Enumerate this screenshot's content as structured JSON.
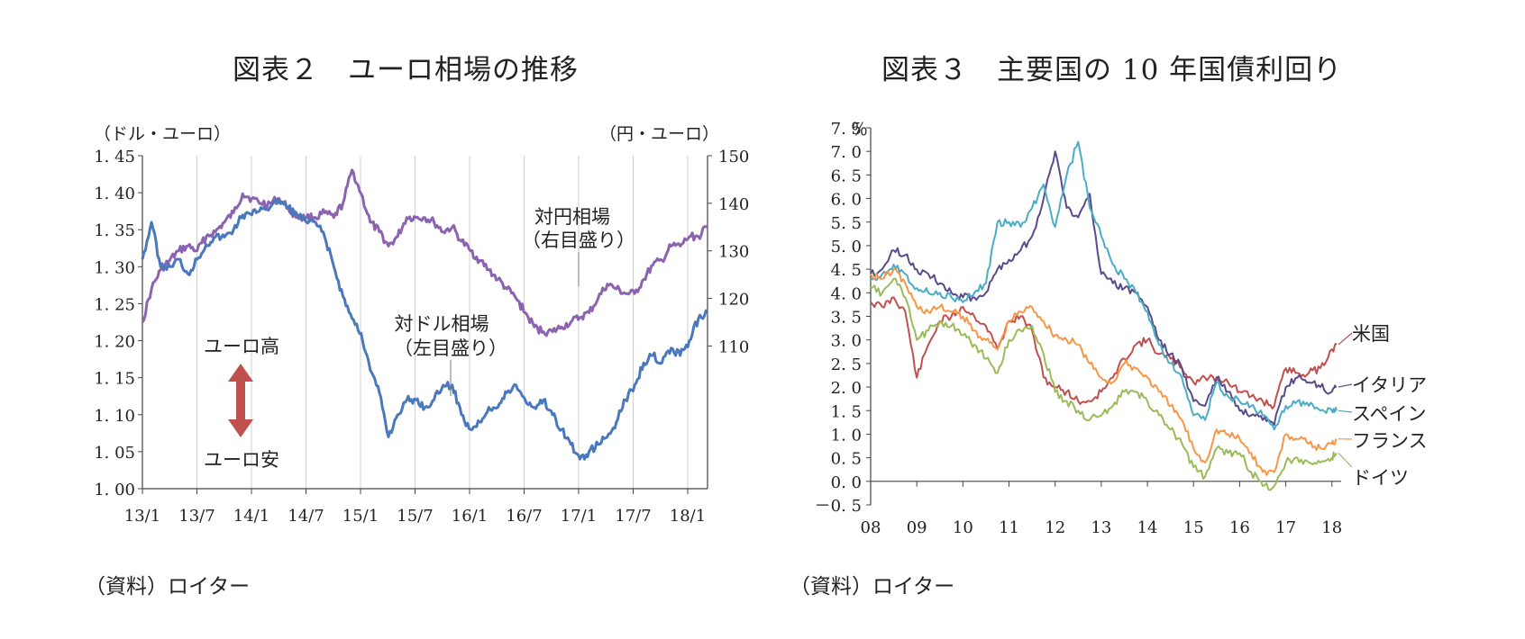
{
  "figure2": {
    "title": "図表２　ユーロ相場の推移",
    "source": "（資料）ロイター",
    "chart_data": {
      "type": "line",
      "title": "図表２　ユーロ相場の推移",
      "left_axis_unit": "（ドル・ユーロ）",
      "right_axis_unit": "（円・ユーロ）",
      "x_ticks": [
        "13/1",
        "13/7",
        "14/1",
        "14/7",
        "15/1",
        "15/7",
        "16/1",
        "16/7",
        "17/1",
        "17/7",
        "18/1"
      ],
      "y_left_ticks": [
        "1. 45",
        "1. 40",
        "1. 35",
        "1. 30",
        "1. 25",
        "1. 20",
        "1. 15",
        "1. 10",
        "1. 05",
        "1. 00"
      ],
      "y_right_ticks": [
        "150",
        "140",
        "130",
        "120",
        "110"
      ],
      "ylim_left": [
        1.0,
        1.45
      ],
      "ylim_right": [
        80,
        150
      ],
      "xlim": [
        0,
        62
      ],
      "grid": "vertical",
      "series": [
        {
          "name": "対ドル相場",
          "label_lines": [
            "対ドル相場",
            "（左目盛り）"
          ],
          "axis": "left",
          "color": "#4a78bd",
          "x": [
            0,
            1,
            2,
            3,
            4,
            5,
            6,
            7,
            8,
            9,
            10,
            11,
            12,
            13,
            14,
            15,
            16,
            17,
            18,
            19,
            20,
            21,
            22,
            23,
            24,
            25,
            26,
            27,
            28,
            29,
            30,
            31,
            32,
            33,
            34,
            35,
            36,
            37,
            38,
            39,
            40,
            41,
            42,
            43,
            44,
            45,
            46,
            47,
            48,
            49,
            50,
            51,
            52,
            53,
            54,
            55,
            56,
            57,
            58,
            59,
            60,
            61,
            62
          ],
          "y": [
            1.31,
            1.36,
            1.3,
            1.3,
            1.31,
            1.29,
            1.31,
            1.33,
            1.34,
            1.34,
            1.35,
            1.37,
            1.37,
            1.38,
            1.38,
            1.39,
            1.38,
            1.37,
            1.36,
            1.36,
            1.34,
            1.3,
            1.26,
            1.23,
            1.21,
            1.16,
            1.13,
            1.07,
            1.1,
            1.12,
            1.12,
            1.11,
            1.12,
            1.14,
            1.14,
            1.1,
            1.08,
            1.09,
            1.11,
            1.11,
            1.13,
            1.14,
            1.12,
            1.11,
            1.12,
            1.1,
            1.08,
            1.06,
            1.04,
            1.05,
            1.06,
            1.07,
            1.09,
            1.12,
            1.14,
            1.17,
            1.18,
            1.17,
            1.19,
            1.18,
            1.2,
            1.23,
            1.24
          ]
        },
        {
          "name": "対円相場",
          "label_lines": [
            "対円相場",
            "（右目盛り）"
          ],
          "axis": "right",
          "color": "#8c63b0",
          "x": [
            0,
            1,
            2,
            3,
            4,
            5,
            6,
            7,
            8,
            9,
            10,
            11,
            12,
            13,
            14,
            15,
            16,
            17,
            18,
            19,
            20,
            21,
            22,
            23,
            24,
            25,
            26,
            27,
            28,
            29,
            30,
            31,
            32,
            33,
            34,
            35,
            36,
            37,
            38,
            39,
            40,
            41,
            42,
            43,
            44,
            45,
            46,
            47,
            48,
            49,
            50,
            51,
            52,
            53,
            54,
            55,
            56,
            57,
            58,
            59,
            60,
            61,
            62
          ],
          "y": [
            115,
            122,
            126,
            128,
            130,
            131,
            130,
            133,
            134,
            136,
            138,
            142,
            141,
            140,
            140,
            141,
            139,
            137,
            137,
            137,
            138,
            137,
            140,
            147,
            142,
            136,
            134,
            131,
            133,
            137,
            137,
            137,
            136,
            134,
            135,
            132,
            130,
            128,
            126,
            124,
            122,
            120,
            117,
            114,
            113,
            113,
            114,
            115,
            116,
            117,
            120,
            123,
            122,
            121,
            121,
            124,
            127,
            128,
            131,
            131,
            133,
            133,
            135
          ]
        }
      ],
      "annotations": [
        {
          "text": "ユーロ高",
          "arrow": "up",
          "color": "#c0504d"
        },
        {
          "text": "ユーロ安",
          "arrow": "down",
          "color": "#c0504d"
        }
      ]
    }
  },
  "figure3": {
    "title": "図表３　主要国の 10 年国債利回り",
    "source": "（資料）ロイター",
    "chart_data": {
      "type": "line",
      "title": "図表３　主要国の 10 年国債利回り",
      "y_unit": "％",
      "x_ticks": [
        "08",
        "09",
        "10",
        "11",
        "12",
        "13",
        "14",
        "15",
        "16",
        "17",
        "18"
      ],
      "y_ticks": [
        "7. 5",
        "7. 0",
        "6. 5",
        "6. 0",
        "5. 5",
        "5. 0",
        "4. 5",
        "4. 0",
        "3. 5",
        "3. 0",
        "2. 5",
        "2. 0",
        "1. 5",
        "1. 0",
        "0. 5",
        "0. 0",
        "－0. 5"
      ],
      "ylim": [
        -0.5,
        7.5
      ],
      "xlim": [
        0,
        10.2
      ],
      "grid": "none",
      "series": [
        {
          "name": "米国",
          "color": "#c0504d",
          "x": [
            0,
            0.25,
            0.5,
            0.75,
            1,
            1.25,
            1.5,
            1.75,
            2,
            2.25,
            2.5,
            2.75,
            3,
            3.25,
            3.5,
            3.75,
            4,
            4.25,
            4.5,
            4.75,
            5,
            5.25,
            5.5,
            5.75,
            6,
            6.25,
            6.5,
            6.75,
            7,
            7.25,
            7.5,
            7.75,
            8,
            8.25,
            8.5,
            8.75,
            9,
            9.25,
            9.5,
            9.75,
            10,
            10.1
          ],
          "y": [
            3.8,
            3.7,
            3.9,
            3.6,
            2.2,
            2.9,
            3.4,
            3.5,
            3.7,
            3.5,
            3.3,
            2.8,
            3.4,
            3.5,
            3.2,
            2.2,
            2.0,
            1.9,
            1.7,
            1.7,
            1.9,
            2.2,
            2.6,
            2.9,
            3.0,
            2.7,
            2.6,
            2.4,
            2.1,
            2.2,
            2.2,
            2.1,
            1.9,
            1.8,
            1.7,
            1.6,
            2.4,
            2.3,
            2.3,
            2.4,
            2.8,
            2.9
          ]
        },
        {
          "name": "イタリア",
          "color": "#5b4a8a",
          "x": [
            0,
            0.25,
            0.5,
            0.75,
            1,
            1.25,
            1.5,
            1.75,
            2,
            2.25,
            2.5,
            2.75,
            3,
            3.25,
            3.5,
            3.75,
            4,
            4.25,
            4.5,
            4.75,
            5,
            5.25,
            5.5,
            5.75,
            6,
            6.25,
            6.5,
            6.75,
            7,
            7.25,
            7.5,
            7.75,
            8,
            8.25,
            8.5,
            8.75,
            9,
            9.25,
            9.5,
            9.75,
            10,
            10.1
          ],
          "y": [
            4.4,
            4.5,
            4.9,
            4.8,
            4.5,
            4.4,
            4.2,
            4.0,
            3.9,
            3.9,
            4.0,
            4.5,
            4.7,
            4.9,
            5.2,
            6.0,
            7.0,
            5.8,
            5.6,
            6.1,
            4.4,
            4.2,
            4.1,
            4.0,
            3.7,
            3.0,
            2.7,
            2.4,
            1.7,
            1.6,
            2.2,
            1.9,
            1.5,
            1.4,
            1.3,
            1.2,
            2.0,
            2.2,
            2.1,
            2.0,
            1.9,
            2.0
          ]
        },
        {
          "name": "スペイン",
          "color": "#4bacc6",
          "x": [
            0,
            0.25,
            0.5,
            0.75,
            1,
            1.25,
            1.5,
            1.75,
            2,
            2.25,
            2.5,
            2.75,
            3,
            3.25,
            3.5,
            3.75,
            4,
            4.25,
            4.5,
            4.75,
            5,
            5.25,
            5.5,
            5.75,
            6,
            6.25,
            6.5,
            6.75,
            7,
            7.25,
            7.5,
            7.75,
            8,
            8.25,
            8.5,
            8.75,
            9,
            9.25,
            9.5,
            9.75,
            10,
            10.1
          ],
          "y": [
            4.3,
            4.4,
            4.6,
            4.4,
            4.1,
            4.0,
            4.0,
            3.9,
            3.8,
            4.0,
            4.2,
            5.5,
            5.5,
            5.4,
            5.8,
            6.3,
            5.4,
            6.5,
            7.2,
            5.8,
            5.2,
            4.6,
            4.3,
            4.0,
            3.6,
            2.9,
            2.5,
            2.2,
            1.4,
            1.3,
            2.1,
            1.8,
            1.7,
            1.6,
            1.4,
            1.1,
            1.6,
            1.7,
            1.6,
            1.5,
            1.5,
            1.5
          ]
        },
        {
          "name": "フランス",
          "color": "#f79646",
          "x": [
            0,
            0.25,
            0.5,
            0.75,
            1,
            1.25,
            1.5,
            1.75,
            2,
            2.25,
            2.5,
            2.75,
            3,
            3.25,
            3.5,
            3.75,
            4,
            4.25,
            4.5,
            4.75,
            5,
            5.25,
            5.5,
            5.75,
            6,
            6.25,
            6.5,
            6.75,
            7,
            7.25,
            7.5,
            7.75,
            8,
            8.25,
            8.5,
            8.75,
            9,
            9.25,
            9.5,
            9.75,
            10,
            10.1
          ],
          "y": [
            4.4,
            4.3,
            4.5,
            4.2,
            3.7,
            3.6,
            3.7,
            3.6,
            3.5,
            3.2,
            3.0,
            2.8,
            3.4,
            3.6,
            3.7,
            3.4,
            3.1,
            3.0,
            2.9,
            2.5,
            2.2,
            2.1,
            2.5,
            2.4,
            2.2,
            1.9,
            1.6,
            1.3,
            0.7,
            0.4,
            1.1,
            1.0,
            0.9,
            0.6,
            0.2,
            0.2,
            1.0,
            0.9,
            0.8,
            0.7,
            0.8,
            0.9
          ]
        },
        {
          "name": "ドイツ",
          "color": "#9bbb59",
          "x": [
            0,
            0.25,
            0.5,
            0.75,
            1,
            1.25,
            1.5,
            1.75,
            2,
            2.25,
            2.5,
            2.75,
            3,
            3.25,
            3.5,
            3.75,
            4,
            4.25,
            4.5,
            4.75,
            5,
            5.25,
            5.5,
            5.75,
            6,
            6.25,
            6.5,
            6.75,
            7,
            7.25,
            7.5,
            7.75,
            8,
            8.25,
            8.5,
            8.75,
            9,
            9.25,
            9.5,
            9.75,
            10,
            10.1
          ],
          "y": [
            4.1,
            4.0,
            4.3,
            3.9,
            3.0,
            3.2,
            3.4,
            3.3,
            3.1,
            2.9,
            2.6,
            2.3,
            3.0,
            3.2,
            3.3,
            2.7,
            1.9,
            1.7,
            1.5,
            1.3,
            1.4,
            1.6,
            1.9,
            1.9,
            1.7,
            1.4,
            1.1,
            0.8,
            0.3,
            0.1,
            0.7,
            0.6,
            0.6,
            0.2,
            -0.1,
            -0.1,
            0.4,
            0.5,
            0.4,
            0.4,
            0.5,
            0.6
          ]
        }
      ]
    }
  }
}
